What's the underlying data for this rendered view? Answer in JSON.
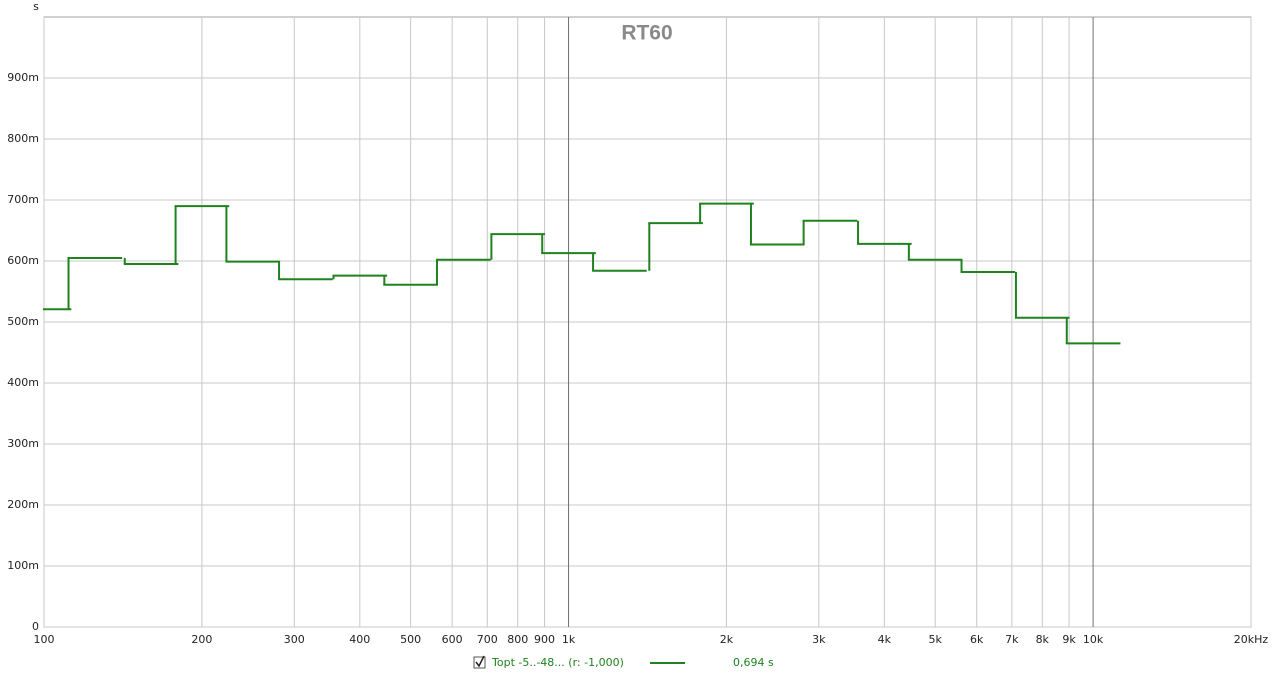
{
  "chart_data": {
    "type": "step",
    "title": "RT60",
    "y_unit": "s",
    "x_scale": "log",
    "x": [
      100,
      125,
      160,
      200,
      250,
      315,
      400,
      500,
      630,
      800,
      1000,
      1250,
      1600,
      2000,
      2500,
      3150,
      4000,
      5000,
      6300,
      8000,
      10000
    ],
    "series": [
      {
        "name": "Topt -5..-48... (r: -1,000)",
        "readout": "0,694 s",
        "color": "#1e821e",
        "values": [
          0.521,
          0.605,
          0.595,
          0.69,
          0.599,
          0.57,
          0.576,
          0.561,
          0.602,
          0.644,
          0.613,
          0.584,
          0.662,
          0.694,
          0.627,
          0.666,
          0.628,
          0.602,
          0.582,
          0.507,
          0.465
        ]
      }
    ],
    "xlim": [
      100,
      20000
    ],
    "xticks": [
      100,
      200,
      300,
      400,
      500,
      600,
      700,
      800,
      900,
      {
        "value": 1000,
        "label": "1k"
      },
      {
        "value": 2000,
        "label": "2k"
      },
      {
        "value": 3000,
        "label": "3k"
      },
      {
        "value": 4000,
        "label": "4k"
      },
      {
        "value": 5000,
        "label": "5k"
      },
      {
        "value": 6000,
        "label": "6k"
      },
      {
        "value": 7000,
        "label": "7k"
      },
      {
        "value": 8000,
        "label": "8k"
      },
      {
        "value": 9000,
        "label": "9k"
      },
      {
        "value": 10000,
        "label": "10k"
      },
      {
        "value": 20000,
        "label": "20kHz"
      }
    ],
    "ylim": [
      0,
      1
    ],
    "yticks": [
      0,
      {
        "value": 0.1,
        "label": "100m"
      },
      {
        "value": 0.2,
        "label": "200m"
      },
      {
        "value": 0.3,
        "label": "300m"
      },
      {
        "value": 0.4,
        "label": "400m"
      },
      {
        "value": 0.5,
        "label": "500m"
      },
      {
        "value": 0.6,
        "label": "600m"
      },
      {
        "value": 0.7,
        "label": "700m"
      },
      {
        "value": 0.8,
        "label": "800m"
      },
      {
        "value": 0.9,
        "label": "900m"
      }
    ],
    "grid": true
  }
}
